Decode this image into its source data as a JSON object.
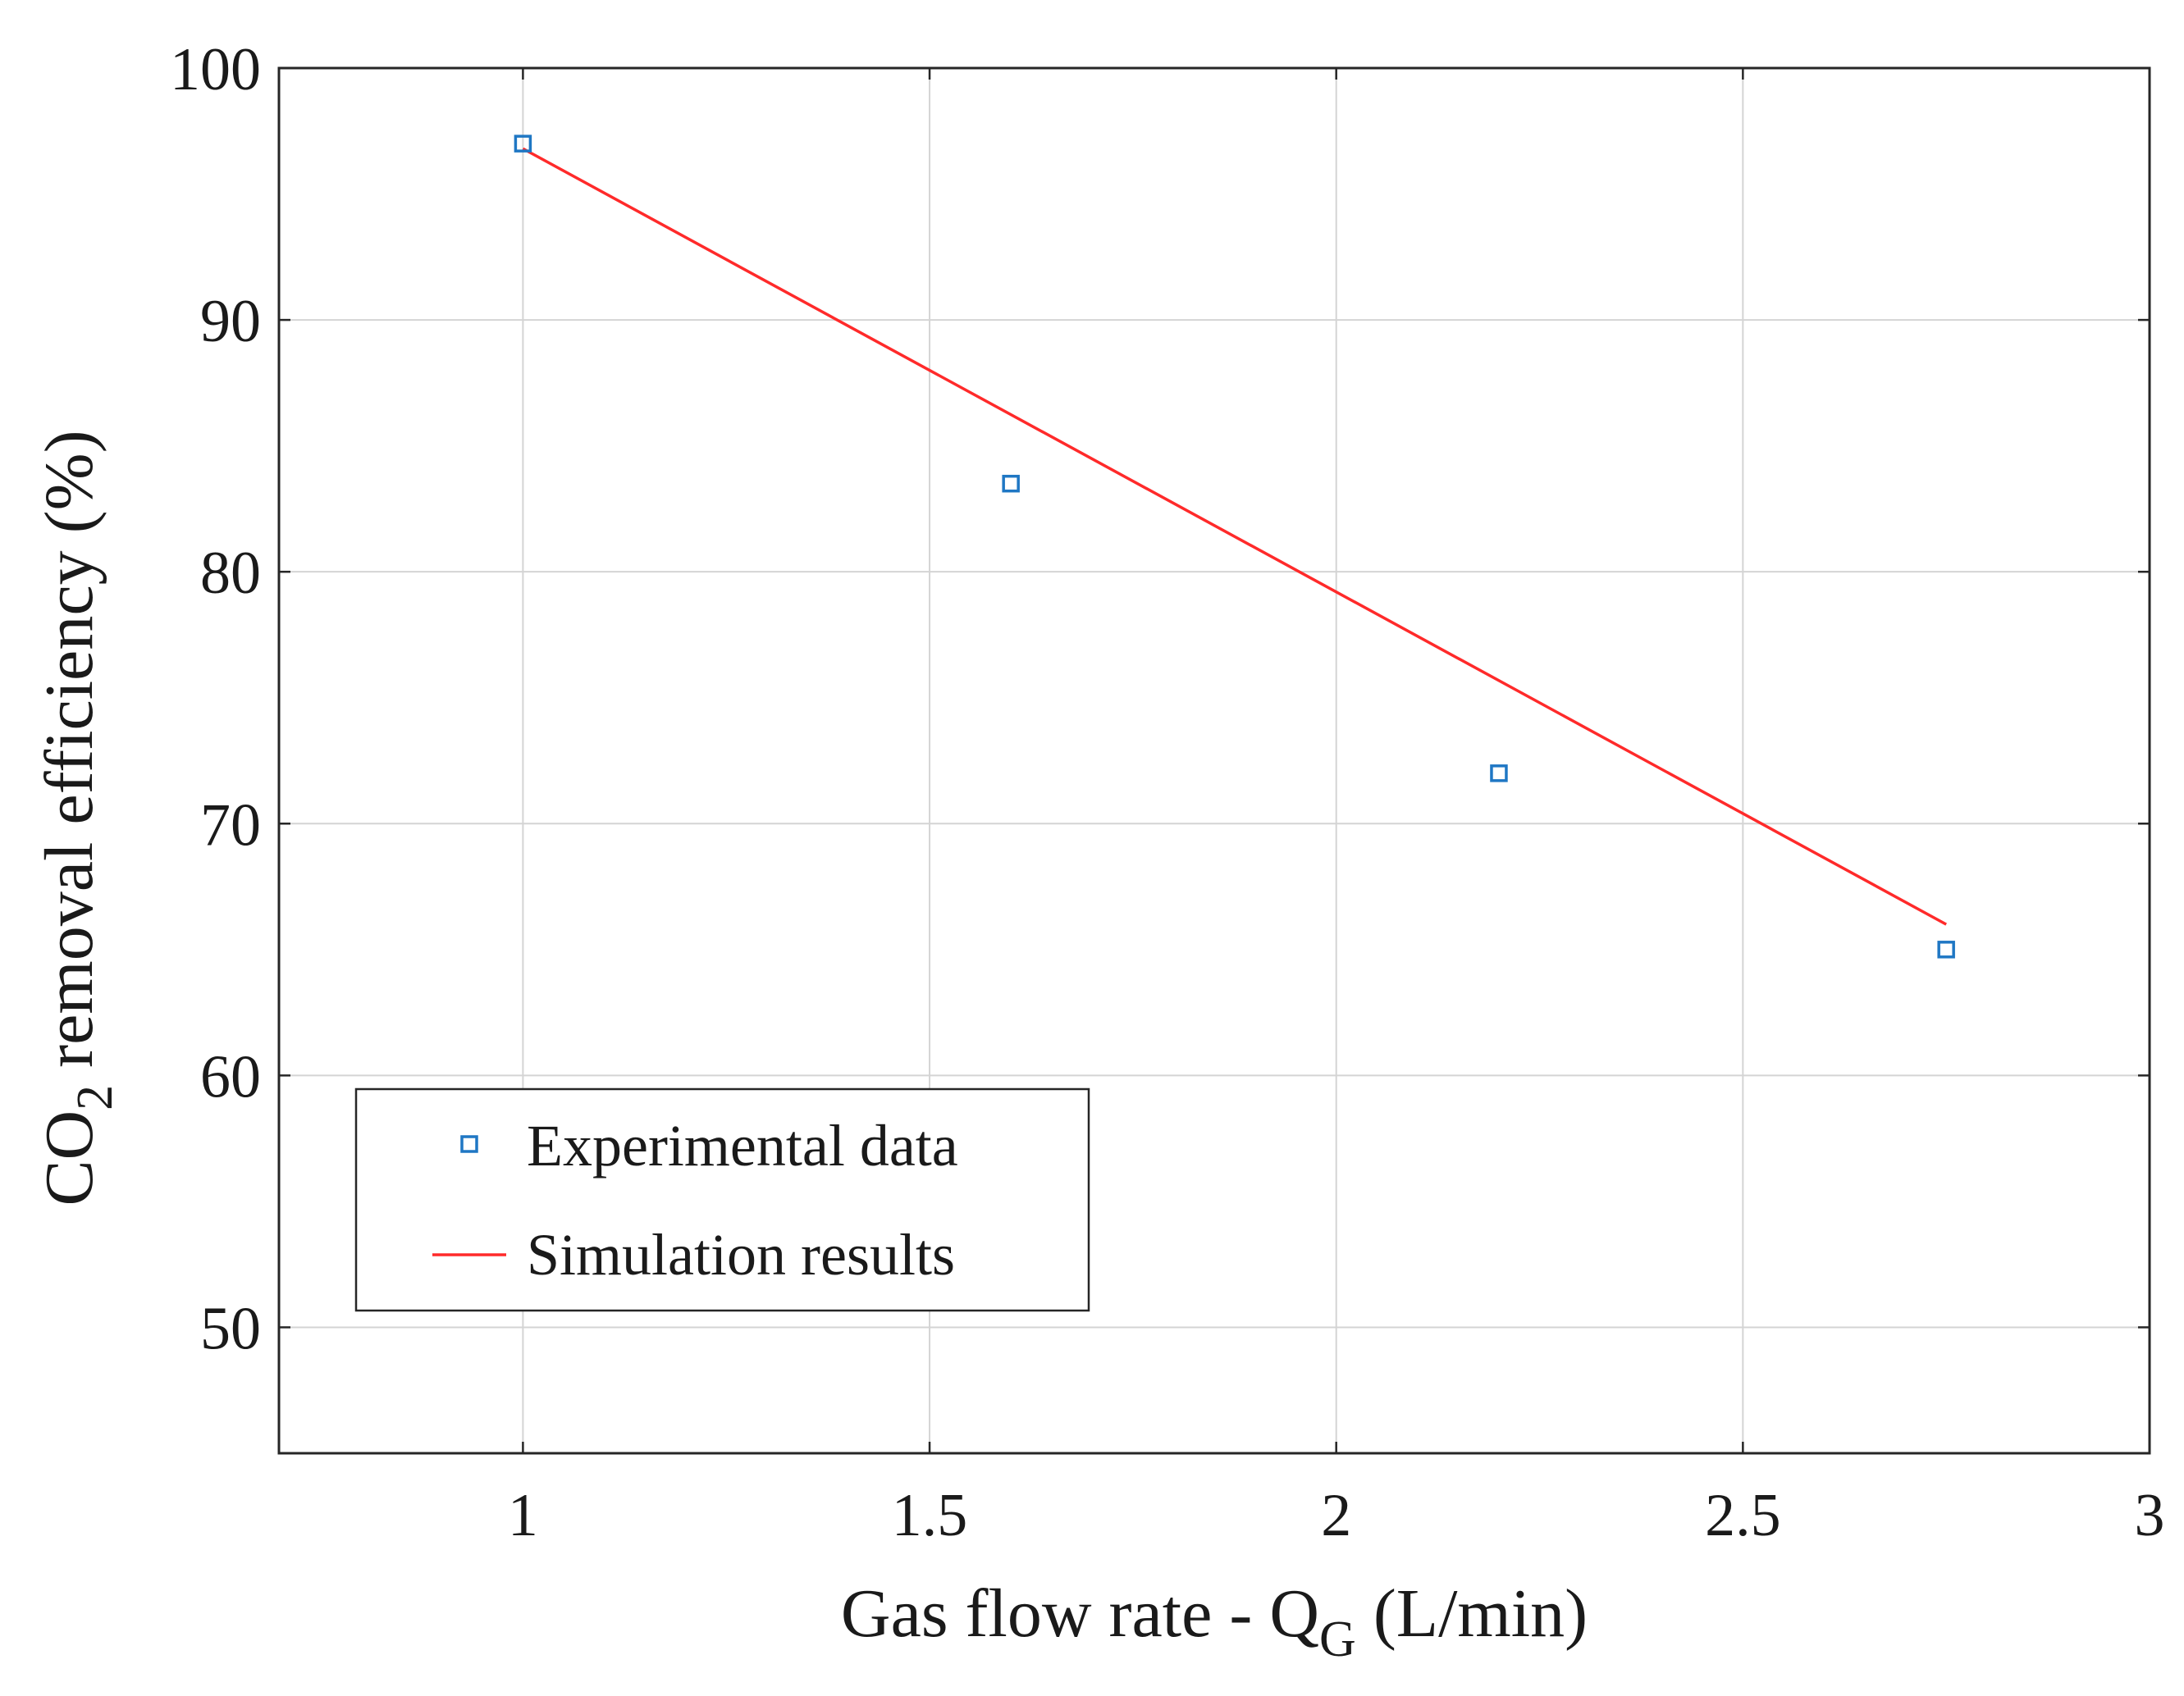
{
  "chart_data": {
    "type": "scatter",
    "title": "",
    "xlabel": {
      "main": "Gas flow rate - Q",
      "sub": "G",
      "units": " (L/min)"
    },
    "ylabel": {
      "main": "CO",
      "sub": "2",
      "rest": " removal efficiency (%)"
    },
    "xlim": [
      0.7,
      3.0
    ],
    "ylim": [
      45,
      100
    ],
    "xticks": [
      1,
      1.5,
      2,
      2.5,
      3
    ],
    "xtick_labels": [
      "1",
      "1.5",
      "2",
      "2.5",
      "3"
    ],
    "yticks": [
      50,
      60,
      70,
      80,
      90,
      100
    ],
    "ytick_labels": [
      "50",
      "60",
      "70",
      "80",
      "90",
      "100"
    ],
    "grid": true,
    "legend_position": "bottom-left",
    "series": [
      {
        "name": "Experimental data",
        "kind": "markers",
        "marker": "square",
        "color": "#1f77c4",
        "x": [
          1.0,
          1.6,
          2.2,
          2.75
        ],
        "y": [
          97,
          83.5,
          72,
          65
        ]
      },
      {
        "name": "Simulation results",
        "kind": "line",
        "color": "#ff2a2a",
        "x": [
          1.0,
          2.75
        ],
        "y": [
          96.8,
          66.0
        ]
      }
    ]
  }
}
